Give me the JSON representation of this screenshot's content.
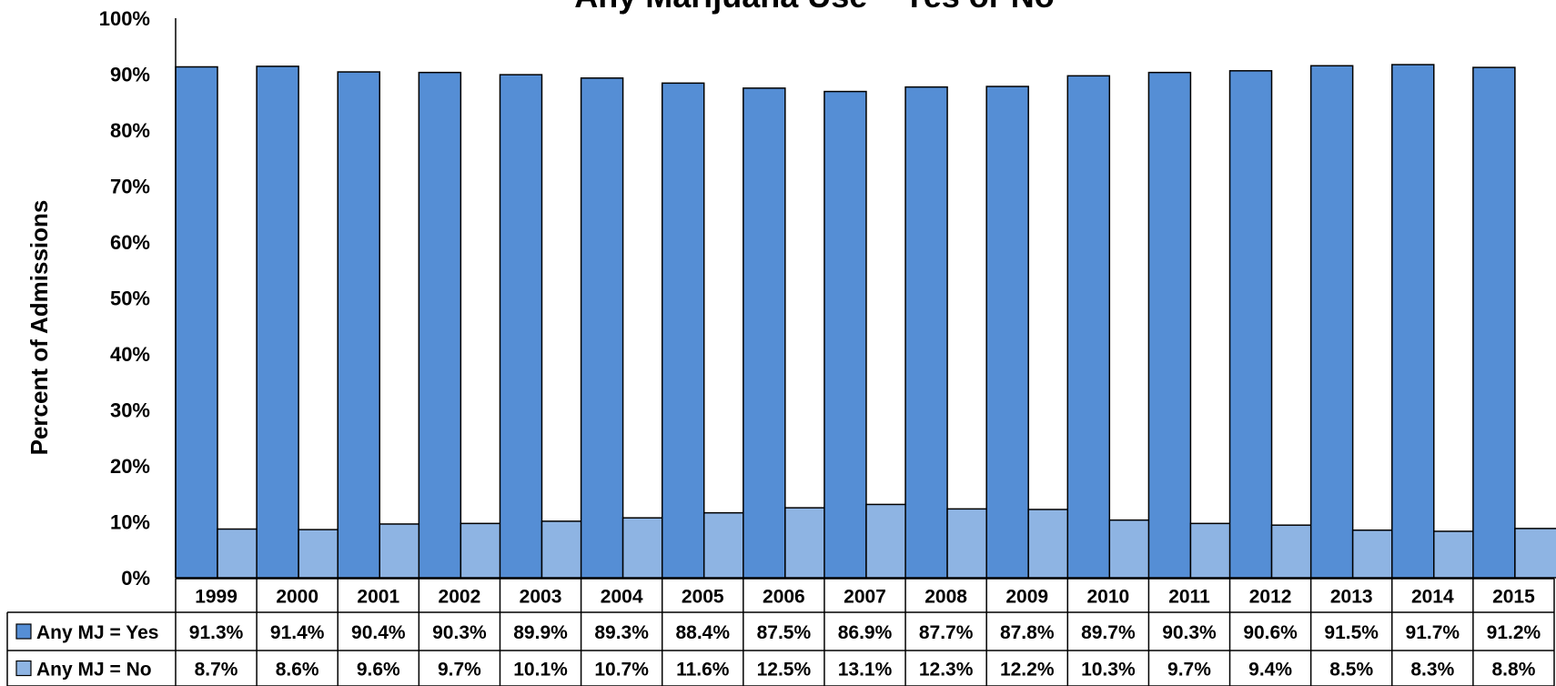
{
  "chart_data": {
    "type": "bar",
    "title": "Any Marijuana Use – Yes or No",
    "ylabel": "Percent of Admissions",
    "xlabel": "",
    "ylim": [
      0,
      100
    ],
    "yticks": [
      "0%",
      "10%",
      "20%",
      "30%",
      "40%",
      "50%",
      "60%",
      "70%",
      "80%",
      "90%",
      "100%"
    ],
    "grid": false,
    "legend": "data-table",
    "categories": [
      "1999",
      "2000",
      "2001",
      "2002",
      "2003",
      "2004",
      "2005",
      "2006",
      "2007",
      "2008",
      "2009",
      "2010",
      "2011",
      "2012",
      "2013",
      "2014",
      "2015"
    ],
    "series": [
      {
        "name": "Any MJ = Yes",
        "color": "#558ed5",
        "values": [
          91.3,
          91.4,
          90.4,
          90.3,
          89.9,
          89.3,
          88.4,
          87.5,
          86.9,
          87.7,
          87.8,
          89.7,
          90.3,
          90.6,
          91.5,
          91.7,
          91.2
        ],
        "labels": [
          "91.3%",
          "91.4%",
          "90.4%",
          "90.3%",
          "89.9%",
          "89.3%",
          "88.4%",
          "87.5%",
          "86.9%",
          "87.7%",
          "87.8%",
          "89.7%",
          "90.3%",
          "90.6%",
          "91.5%",
          "91.7%",
          "91.2%"
        ]
      },
      {
        "name": "Any MJ = No",
        "color": "#8eb4e3",
        "values": [
          8.7,
          8.6,
          9.6,
          9.7,
          10.1,
          10.7,
          11.6,
          12.5,
          13.1,
          12.3,
          12.2,
          10.3,
          9.7,
          9.4,
          8.5,
          8.3,
          8.8
        ],
        "labels": [
          "8.7%",
          "8.6%",
          "9.6%",
          "9.7%",
          "10.1%",
          "10.7%",
          "11.6%",
          "12.5%",
          "13.1%",
          "12.3%",
          "12.2%",
          "10.3%",
          "9.7%",
          "9.4%",
          "8.5%",
          "8.3%",
          "8.8%"
        ]
      }
    ]
  }
}
